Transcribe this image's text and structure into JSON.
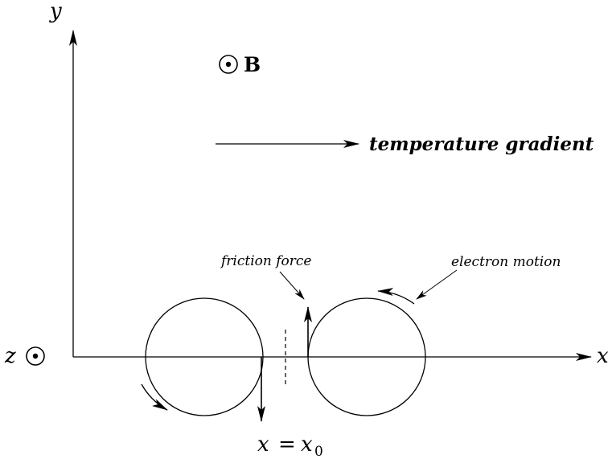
{
  "axes": {
    "y_label": "y",
    "x_label": "x",
    "z_label": "z"
  },
  "field": {
    "label": "B"
  },
  "labels": {
    "temperature_gradient": "temperature gradient",
    "friction_force": "friction force",
    "electron_motion": "electron motion",
    "x_eq_lhs": "x",
    "x_eq_op": "=",
    "x_eq_rhs": "x",
    "x_eq_sub": "0"
  },
  "colors": {
    "ink": "#000000",
    "background": "#ffffff"
  }
}
